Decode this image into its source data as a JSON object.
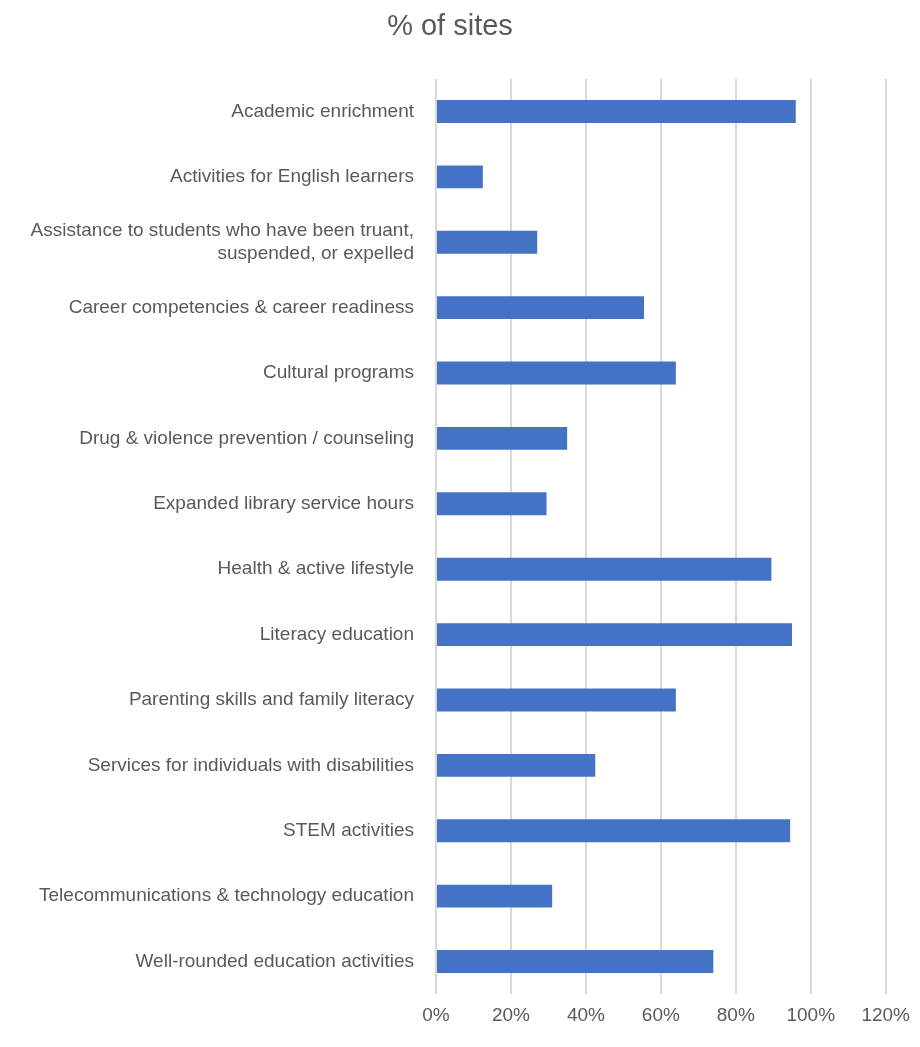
{
  "chart_data": {
    "type": "bar",
    "orientation": "horizontal",
    "title": "% of sites",
    "categories": [
      "Academic enrichment",
      "Activities for English learners",
      "Assistance to students who have been truant, suspended, or expelled",
      "Career competencies & career readiness",
      "Cultural programs",
      "Drug & violence prevention / counseling",
      "Expanded library service hours",
      "Health & active lifestyle",
      "Literacy education",
      "Parenting skills and family literacy",
      "Services for individuals with disabilities",
      "STEM activities",
      "Telecommunications & technology education",
      "Well-rounded education activities"
    ],
    "values": [
      96,
      12.5,
      27,
      55.5,
      64,
      35,
      29.5,
      89.5,
      95,
      64,
      42.5,
      94.5,
      31,
      74
    ],
    "color": "#4472c4",
    "xlim": [
      0,
      120
    ],
    "xticks": [
      {
        "value": 0,
        "label": "0%"
      },
      {
        "value": 20,
        "label": "20%"
      },
      {
        "value": 40,
        "label": "40%"
      },
      {
        "value": 60,
        "label": "60%"
      },
      {
        "value": 80,
        "label": "80%"
      },
      {
        "value": 100,
        "label": "100%"
      },
      {
        "value": 120,
        "label": "120%"
      }
    ],
    "grid": "x",
    "legend": false
  }
}
